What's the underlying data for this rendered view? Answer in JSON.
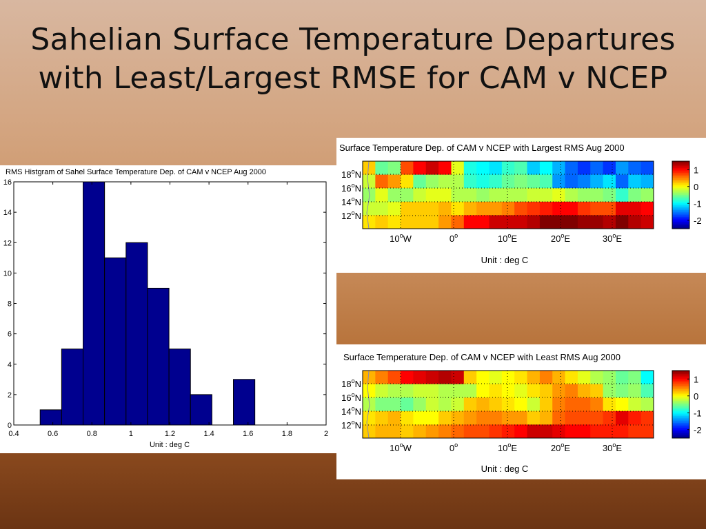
{
  "slide": {
    "title_line1": "Sahelian Surface Temperature Departures",
    "title_line2": "with Least/Largest RMSE for CAM v NCEP"
  },
  "chart_data": [
    {
      "type": "bar",
      "title": "RMS Histgram of Sahel Surface Temperature Dep. of CAM v NCEP   Aug 2000",
      "xlabel": "Unit : deg C",
      "ylabel": "",
      "x_ticks": [
        "0.4",
        "0.6",
        "0.8",
        "1",
        "1.2",
        "1.4",
        "1.6",
        "1.8",
        "2"
      ],
      "y_ticks": [
        "0",
        "2",
        "4",
        "6",
        "8",
        "10",
        "12",
        "14",
        "16"
      ],
      "xlim": [
        0.4,
        2.0
      ],
      "ylim": [
        0,
        16
      ],
      "bin_width": 0.11,
      "bar_color": "#00008f",
      "bins": [
        {
          "center": 0.59,
          "count": 1
        },
        {
          "center": 0.7,
          "count": 5
        },
        {
          "center": 0.81,
          "count": 16
        },
        {
          "center": 0.92,
          "count": 11
        },
        {
          "center": 1.03,
          "count": 12
        },
        {
          "center": 1.14,
          "count": 9
        },
        {
          "center": 1.25,
          "count": 5
        },
        {
          "center": 1.36,
          "count": 2
        },
        {
          "center": 1.47,
          "count": 0
        },
        {
          "center": 1.58,
          "count": 3
        }
      ]
    },
    {
      "type": "heatmap",
      "title": "Surface Temperature Dep. of CAM v NCEP with Largest RMS Aug 2000",
      "xlabel": "Unit : deg C",
      "x_ticks": [
        "10°W",
        "0°",
        "10°E",
        "20°E",
        "30°E"
      ],
      "y_ticks": [
        "18°N",
        "16°N",
        "14°N",
        "12°N"
      ],
      "colorbar_ticks": [
        "1",
        "0",
        "-1",
        "-2"
      ],
      "clim": [
        -2.5,
        1.5
      ],
      "values": [
        [
          0.2,
          -0.6,
          -0.5,
          0.7,
          1.0,
          1.2,
          1.0,
          -0.1,
          -0.9,
          -1.0,
          -1.1,
          -0.8,
          -0.7,
          -1.2,
          -1.0,
          -1.3,
          -1.6,
          -1.8,
          -1.6,
          -1.8,
          -1.4,
          -1.6,
          -1.7
        ],
        [
          -0.2,
          0.6,
          0.4,
          0.1,
          -0.6,
          -0.4,
          -0.3,
          -0.3,
          -0.8,
          -0.9,
          -0.8,
          -0.6,
          -0.5,
          -0.6,
          -0.7,
          -1.4,
          -1.6,
          -1.5,
          -1.3,
          -1.1,
          -1.6,
          -1.2,
          -1.3
        ],
        [
          -0.4,
          -0.1,
          -0.4,
          -0.4,
          -0.2,
          -0.1,
          -0.1,
          -0.3,
          -0.3,
          -0.4,
          -0.3,
          -0.3,
          -0.3,
          -0.2,
          -0.2,
          -0.1,
          -0.3,
          -0.4,
          -0.4,
          -0.5,
          -0.8,
          -0.5,
          -0.4
        ],
        [
          -0.2,
          -0.2,
          -0.1,
          0.2,
          0.2,
          0.2,
          0.3,
          0.1,
          0.3,
          0.4,
          0.4,
          0.5,
          0.7,
          0.8,
          0.9,
          1.0,
          1.0,
          0.8,
          0.7,
          0.7,
          1.1,
          1.1,
          1.0
        ],
        [
          0.1,
          0.2,
          0.1,
          0.2,
          0.2,
          0.2,
          0.4,
          0.6,
          1.0,
          1.0,
          1.2,
          1.2,
          1.2,
          1.3,
          1.5,
          1.6,
          1.5,
          1.4,
          1.4,
          1.3,
          1.5,
          1.3,
          1.2
        ]
      ]
    },
    {
      "type": "heatmap",
      "title": "Surface Temperature Dep. of CAM v NCEP with Least RMS Aug 2000",
      "xlabel": "Unit : deg C",
      "x_ticks": [
        "10°W",
        "0°",
        "10°E",
        "20°E",
        "30°E"
      ],
      "y_ticks": [
        "18°N",
        "16°N",
        "14°N",
        "12°N"
      ],
      "colorbar_ticks": [
        "1",
        "0",
        "-1",
        "-2"
      ],
      "clim": [
        -2.5,
        1.5
      ],
      "values": [
        [
          0.3,
          0.5,
          0.7,
          1.0,
          1.1,
          1.2,
          1.3,
          1.2,
          0.2,
          0.0,
          -0.1,
          0.0,
          0.1,
          0.3,
          0.5,
          0.3,
          0.1,
          -0.1,
          -0.3,
          -0.4,
          -0.6,
          -0.5,
          -1.0
        ],
        [
          0.0,
          -0.2,
          -0.3,
          -0.3,
          -0.2,
          -0.2,
          -0.3,
          -0.3,
          -0.3,
          0.0,
          0.1,
          0.0,
          -0.1,
          0.1,
          0.2,
          0.4,
          0.5,
          0.3,
          0.2,
          -0.4,
          -0.5,
          -0.4,
          -0.7
        ],
        [
          -0.3,
          -0.5,
          -0.5,
          -0.6,
          -0.4,
          -0.2,
          -0.3,
          -0.2,
          0.2,
          0.3,
          0.2,
          0.1,
          0.0,
          -0.2,
          0.2,
          0.5,
          0.6,
          0.6,
          0.5,
          0.1,
          0.0,
          -0.2,
          -0.3
        ],
        [
          0.1,
          0.2,
          0.3,
          0.1,
          0.0,
          0.0,
          0.2,
          0.3,
          0.4,
          0.5,
          0.5,
          0.4,
          0.4,
          0.2,
          0.3,
          0.6,
          0.7,
          0.7,
          0.7,
          0.8,
          1.1,
          0.9,
          0.8
        ],
        [
          0.2,
          0.3,
          0.3,
          0.2,
          0.3,
          0.4,
          0.5,
          0.6,
          0.7,
          0.7,
          0.8,
          0.9,
          1.0,
          1.2,
          1.2,
          1.1,
          1.0,
          1.0,
          0.9,
          0.9,
          0.9,
          0.8,
          0.8
        ]
      ]
    }
  ]
}
